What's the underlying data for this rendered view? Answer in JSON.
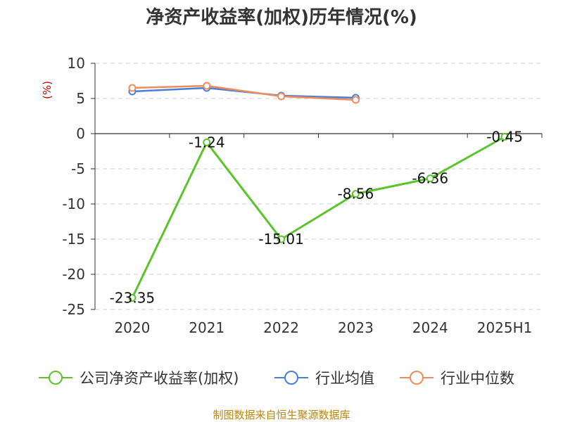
{
  "chart_data": {
    "type": "line",
    "title": "净资产收益率(加权)历年情况(%)",
    "y_unit": "(%)",
    "categories": [
      "2020",
      "2021",
      "2022",
      "2023",
      "2024",
      "2025H1"
    ],
    "ylim": [
      -25,
      10
    ],
    "yticks": [
      "10",
      "5",
      "0",
      "-5",
      "-10",
      "-15",
      "-20",
      "-25"
    ],
    "grid": true,
    "legend_position": "bottom",
    "series": [
      {
        "name": "公司净资产收益率(加权)",
        "color": "#5ac42a",
        "values": [
          -23.35,
          -1.24,
          -15.01,
          -8.56,
          -6.36,
          -0.45
        ],
        "labels": [
          "-23.35",
          "-1.24",
          "-15.01",
          "-8.56",
          "-6.36",
          "-0.45"
        ]
      },
      {
        "name": "行业均值",
        "color": "#4a7fd6",
        "values": [
          6.0,
          6.5,
          5.4,
          5.1,
          null,
          null
        ]
      },
      {
        "name": "行业中位数",
        "color": "#f08c5a",
        "values": [
          6.5,
          6.8,
          5.3,
          4.8,
          null,
          null
        ]
      }
    ]
  },
  "source": "制图数据来自恒生聚源数据库"
}
